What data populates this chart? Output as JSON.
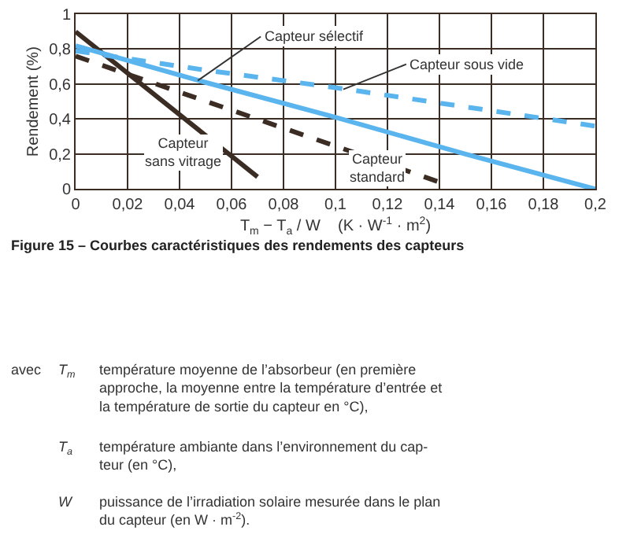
{
  "chart_data": {
    "type": "line",
    "xlabel": "T$_{m}$ − T$_{a}$ / W    (K · W$^{-1}$ · m$^{2}$)",
    "ylabel": "Rendement (%)",
    "series": [
      {
        "color": "#3b2c24",
        "line_style": "solid",
        "x": [
          0,
          0.07
        ],
        "values": [
          0.9,
          0.07
        ]
      },
      {
        "color": "#3b2c24",
        "line_style": "dashed",
        "x": [
          0,
          0.14
        ],
        "values": [
          0.76,
          0.04
        ]
      },
      {
        "color": "#5ab4ee",
        "line_style": "solid",
        "x": [
          0,
          0.05,
          0.1,
          0.15,
          0.2
        ],
        "values": [
          0.82,
          0.61,
          0.41,
          0.2,
          0
        ]
      },
      {
        "color": "#5ab4ee",
        "line_style": "dashed",
        "x": [
          0,
          0.05,
          0.1,
          0.15,
          0.2
        ],
        "values": [
          0.79,
          0.68,
          0.58,
          0.47,
          0.36
        ]
      }
    ],
    "xlim": [
      0,
      0.2
    ],
    "xticks": [
      0,
      {
        "value": 0.02,
        "label": "0,02"
      },
      {
        "value": 0.04,
        "label": "0,04"
      },
      {
        "value": 0.06,
        "label": "0,06"
      },
      {
        "value": 0.08,
        "label": "0,08"
      },
      {
        "value": 0.1,
        "label": "0,1"
      },
      {
        "value": 0.12,
        "label": "0,12"
      },
      {
        "value": 0.14,
        "label": "0,14"
      },
      {
        "value": 0.16,
        "label": "0,16"
      },
      {
        "value": 0.18,
        "label": "0,18"
      },
      {
        "value": 0.2,
        "label": "0,2"
      }
    ],
    "ylim": [
      0,
      1
    ],
    "yticks": [
      0,
      {
        "value": 0.2,
        "label": "0,2"
      },
      {
        "value": 0.4,
        "label": "0,4"
      },
      {
        "value": 0.6,
        "label": "0,6"
      },
      {
        "value": 0.8,
        "label": "0,8"
      },
      1
    ],
    "grid": true,
    "marker": "none",
    "annotations": [
      {
        "text": "Capteur sélectif",
        "x": 0.047,
        "y": 0.62
      },
      {
        "text": "Capteur sous vide",
        "x": 0.103,
        "y": 0.57
      },
      "Capteur\nsans vitrage",
      "Capteur\nstandard",
      "Figure 15 – Courbes caractéristiques des rendements des capteurs",
      "avec",
      "T$_{m}$",
      "température moyenne de l’absorbeur (en première\napproche, la moyenne entre la température d’entrée et\nla température de sortie du capteur en °C),",
      "T$_{a}$",
      "température ambiante dans l’environnement du cap-\nteur (en °C),",
      "W",
      "puissance de l’irradiation solaire mesurée dans le plan\ndu capteur (en W · m$^{-2}$)."
    ]
  }
}
